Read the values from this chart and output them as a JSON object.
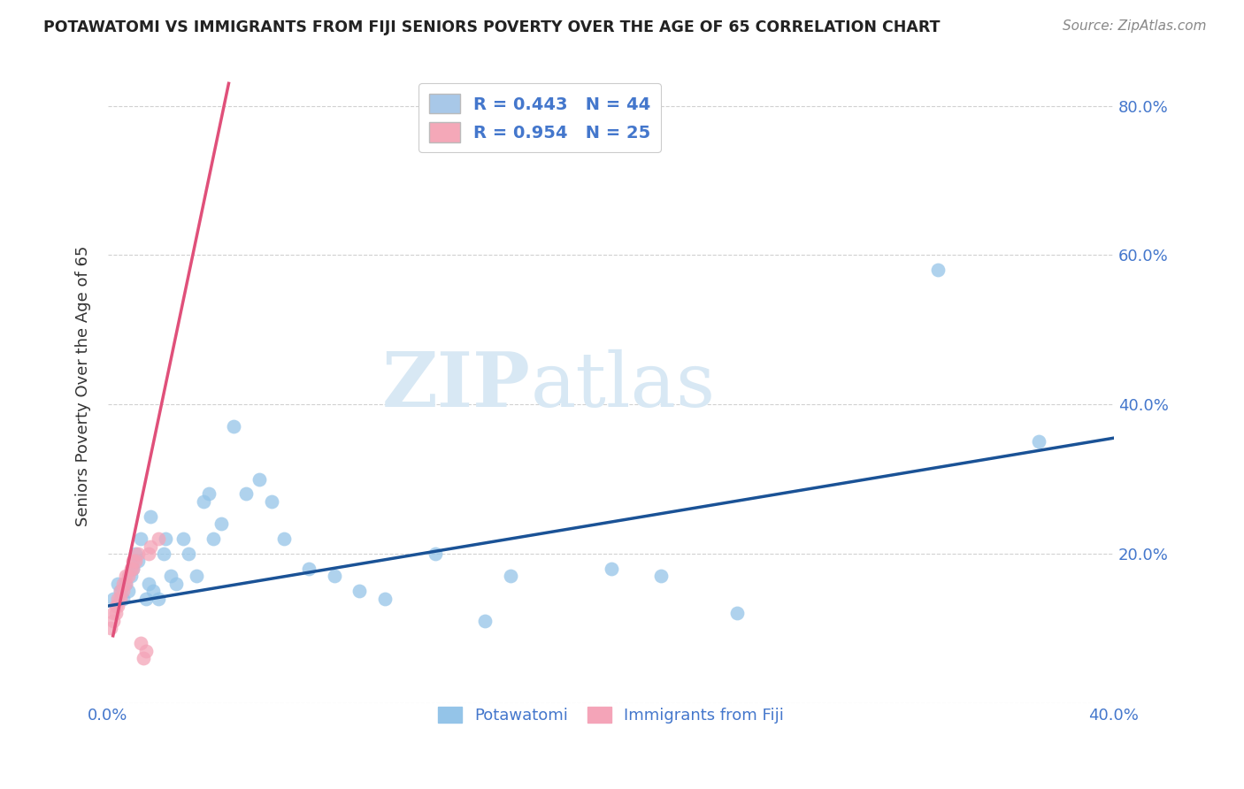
{
  "title": "POTAWATOMI VS IMMIGRANTS FROM FIJI SENIORS POVERTY OVER THE AGE OF 65 CORRELATION CHART",
  "source": "Source: ZipAtlas.com",
  "ylabel": "Seniors Poverty Over the Age of 65",
  "xlim": [
    0.0,
    0.4
  ],
  "ylim": [
    0.0,
    0.85
  ],
  "yticks": [
    0.0,
    0.2,
    0.4,
    0.6,
    0.8
  ],
  "xtick_positions": [
    0.0,
    0.1,
    0.2,
    0.3,
    0.4
  ],
  "xtick_labels": [
    "0.0%",
    "",
    "",
    "",
    "40.0%"
  ],
  "ytick_labels": [
    "",
    "20.0%",
    "40.0%",
    "60.0%",
    "80.0%"
  ],
  "blue_color": "#94c4e8",
  "pink_color": "#f4a4b8",
  "blue_line_color": "#1a5296",
  "pink_line_color": "#e0507a",
  "grid_color": "#cccccc",
  "watermark_color": "#d8e8f4",
  "title_color": "#222222",
  "source_color": "#888888",
  "tick_label_color": "#4477cc",
  "legend1_patch": "#a8c8e8",
  "legend2_patch": "#f4a8b8",
  "legend1_text": "R = 0.443   N = 44",
  "legend2_text": "R = 0.954   N = 25",
  "bottom_legend1": "Potawatomi",
  "bottom_legend2": "Immigrants from Fiji",
  "potawatomi_x": [
    0.002,
    0.004,
    0.005,
    0.006,
    0.007,
    0.008,
    0.009,
    0.01,
    0.011,
    0.012,
    0.013,
    0.015,
    0.016,
    0.017,
    0.018,
    0.02,
    0.022,
    0.023,
    0.025,
    0.027,
    0.03,
    0.032,
    0.035,
    0.038,
    0.04,
    0.042,
    0.045,
    0.05,
    0.055,
    0.06,
    0.065,
    0.07,
    0.08,
    0.09,
    0.1,
    0.11,
    0.13,
    0.15,
    0.16,
    0.2,
    0.22,
    0.25,
    0.33,
    0.37
  ],
  "potawatomi_y": [
    0.14,
    0.16,
    0.15,
    0.14,
    0.16,
    0.15,
    0.17,
    0.18,
    0.2,
    0.19,
    0.22,
    0.14,
    0.16,
    0.25,
    0.15,
    0.14,
    0.2,
    0.22,
    0.17,
    0.16,
    0.22,
    0.2,
    0.17,
    0.27,
    0.28,
    0.22,
    0.24,
    0.37,
    0.28,
    0.3,
    0.27,
    0.22,
    0.18,
    0.17,
    0.15,
    0.14,
    0.2,
    0.11,
    0.17,
    0.18,
    0.17,
    0.12,
    0.58,
    0.35
  ],
  "fiji_x": [
    0.001,
    0.002,
    0.002,
    0.003,
    0.003,
    0.004,
    0.004,
    0.005,
    0.005,
    0.006,
    0.006,
    0.007,
    0.007,
    0.008,
    0.009,
    0.01,
    0.01,
    0.011,
    0.012,
    0.013,
    0.014,
    0.015,
    0.016,
    0.017,
    0.02
  ],
  "fiji_y": [
    0.1,
    0.11,
    0.12,
    0.12,
    0.13,
    0.13,
    0.14,
    0.14,
    0.15,
    0.15,
    0.16,
    0.16,
    0.17,
    0.17,
    0.18,
    0.18,
    0.19,
    0.19,
    0.2,
    0.08,
    0.06,
    0.07,
    0.2,
    0.21,
    0.22
  ],
  "blue_line_x": [
    0.0,
    0.4
  ],
  "blue_line_y": [
    0.13,
    0.355
  ],
  "pink_line_x": [
    0.002,
    0.048
  ],
  "pink_line_y": [
    0.09,
    0.83
  ]
}
